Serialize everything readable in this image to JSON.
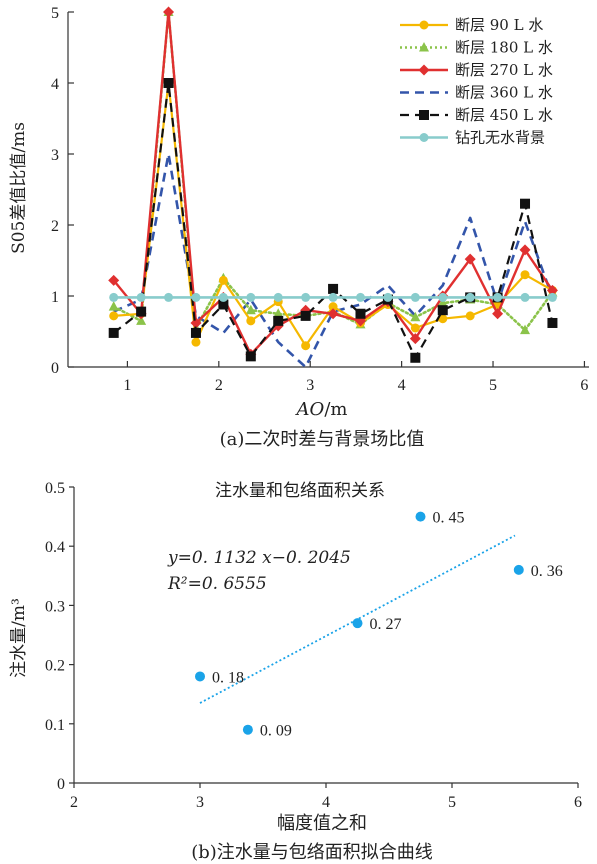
{
  "chart_data": [
    {
      "type": "line",
      "ylabel": "S05差值比值/ms",
      "xlabel_italic": "AO",
      "xlabel_unit": "/m",
      "caption": "(a)二次时差与背景场比值",
      "xlim": [
        0.35,
        6.05
      ],
      "ylim": [
        0,
        5
      ],
      "xticks": [
        "1",
        "2",
        "3",
        "4",
        "5",
        "6"
      ],
      "yticks": [
        "0",
        "1",
        "2",
        "3",
        "4",
        "5"
      ],
      "grid": false,
      "legend_position": "top-right",
      "x": [
        0.85,
        1.15,
        1.45,
        1.75,
        2.05,
        2.35,
        2.65,
        2.95,
        3.25,
        3.55,
        3.85,
        4.15,
        4.45,
        4.75,
        5.05,
        5.35,
        5.65
      ],
      "series": [
        {
          "name": "断层 90 L 水",
          "color": "#f5b800",
          "style": "solid",
          "marker": "circle",
          "values": [
            0.72,
            0.75,
            4.0,
            0.35,
            1.22,
            0.65,
            0.92,
            0.3,
            0.85,
            0.62,
            0.88,
            0.55,
            0.68,
            0.72,
            0.88,
            1.3,
            1.08
          ]
        },
        {
          "name": "断层 180 L 水",
          "color": "#8bc34a",
          "style": "dotted",
          "marker": "triangle",
          "values": [
            0.85,
            0.65,
            5.0,
            0.55,
            1.25,
            0.8,
            0.75,
            0.72,
            0.78,
            0.6,
            0.9,
            0.7,
            0.9,
            0.95,
            0.88,
            0.52,
            1.05
          ]
        },
        {
          "name": "断层 270 L 水",
          "color": "#e03030",
          "style": "solid",
          "marker": "diamond",
          "values": [
            1.22,
            0.75,
            5.0,
            0.62,
            0.98,
            0.18,
            0.58,
            0.8,
            0.75,
            0.65,
            0.92,
            0.4,
            1.0,
            1.52,
            0.75,
            1.65,
            1.08
          ]
        },
        {
          "name": "断层 360 L 水",
          "color": "#3355aa",
          "style": "dashed",
          "marker": "none",
          "values": [
            0.78,
            0.95,
            3.0,
            0.72,
            0.48,
            0.95,
            0.35,
            0.0,
            0.78,
            0.88,
            1.15,
            0.72,
            1.15,
            2.1,
            0.9,
            2.05,
            0.98
          ]
        },
        {
          "name": "断层 450 L 水",
          "color": "#111111",
          "style": "dashed",
          "marker": "square",
          "values": [
            0.48,
            0.78,
            4.0,
            0.48,
            0.88,
            0.15,
            0.65,
            0.72,
            1.1,
            0.75,
            0.95,
            0.13,
            0.8,
            0.98,
            0.98,
            2.3,
            0.62
          ]
        },
        {
          "name": "钻孔无水背景",
          "color": "#88cccc",
          "style": "solid",
          "marker": "circle",
          "values": [
            0.98,
            0.98,
            0.98,
            0.98,
            0.98,
            0.98,
            0.98,
            0.98,
            0.98,
            0.98,
            0.98,
            0.98,
            0.98,
            0.98,
            0.98,
            0.98,
            0.98
          ]
        }
      ]
    },
    {
      "type": "scatter",
      "title": "注水量和包络面积关系",
      "xlabel": "幅度值之和",
      "ylabel": "注水量/m³",
      "caption": "(b)注水量与包络面积拟合曲线",
      "xlim": [
        2,
        6
      ],
      "ylim": [
        0,
        0.5
      ],
      "xticks": [
        "2",
        "3",
        "4",
        "5",
        "6"
      ],
      "yticks": [
        "0",
        "0.1",
        "0.2",
        "0.3",
        "0.4",
        "0.5"
      ],
      "grid": false,
      "color": "#1aa3e8",
      "points": [
        {
          "x": 3.0,
          "y": 0.18,
          "label": "0. 18"
        },
        {
          "x": 3.38,
          "y": 0.09,
          "label": "0. 09"
        },
        {
          "x": 4.25,
          "y": 0.27,
          "label": "0. 27"
        },
        {
          "x": 4.75,
          "y": 0.45,
          "label": "0. 45"
        },
        {
          "x": 5.53,
          "y": 0.36,
          "label": "0. 36"
        }
      ],
      "trendline": {
        "slope": 0.1132,
        "intercept": -0.2045,
        "x_range": [
          3.0,
          5.5
        ],
        "style": "dotted"
      },
      "equation": "y=0. 1132 x−0. 2045",
      "r2": "R²=0. 6555"
    }
  ]
}
